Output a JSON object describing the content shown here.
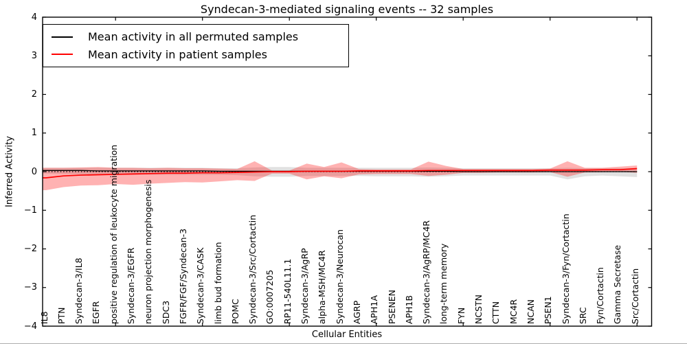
{
  "chart_data": {
    "type": "line",
    "title": "Syndecan-3-mediated signaling events -- 32 samples",
    "xlabel": "Cellular Entities",
    "ylabel": "Inferred Activity",
    "ylim": [
      -4,
      4
    ],
    "yticks": [
      4,
      3,
      2,
      1,
      0,
      -1,
      -2,
      -3,
      -4
    ],
    "x_major_tick_indices": [
      4,
      9,
      14,
      19,
      24,
      29,
      34
    ],
    "grid": false,
    "zero_line": {
      "value": 0,
      "style": "dotted",
      "color": "#000000"
    },
    "legend": {
      "position": "upper left",
      "entries": [
        {
          "label": "Mean activity in all permuted samples",
          "color": "#000000"
        },
        {
          "label": "Mean activity in patient samples",
          "color": "#ff0000"
        }
      ]
    },
    "categories": [
      "IL8",
      "PTN",
      "Syndecan-3/IL8",
      "EGFR",
      "positive regulation of leukocyte migration",
      "Syndecan-3/EGFR",
      "neuron projection morphogenesis",
      "SDC3",
      "FGFR/FGF/Syndecan-3",
      "Syndecan-3/CASK",
      "limb bud formation",
      "POMC",
      "Syndecan-3/Src/Cortactin",
      "GO:0007205",
      "RP11-540L11.1",
      "Syndecan-3/AgRP",
      "alpha-MSH/MC4R",
      "Syndecan-3/Neurocan",
      "AGRP",
      "APH1A",
      "PSENEN",
      "APH1B",
      "Syndecan-3/AgRP/MC4R",
      "long-term memory",
      "FYN",
      "NCSTN",
      "CTTN",
      "MC4R",
      "NCAN",
      "PSEN1",
      "Syndecan-3/Fyn/Cortactin",
      "SRC",
      "Fyn/Cortactin",
      "Gamma Secretase",
      "Src/Cortactin"
    ],
    "series": [
      {
        "name": "Mean activity in all permuted samples",
        "color": "#000000",
        "band_color": "rgba(120,120,120,0.22)",
        "values": [
          0.03,
          0.03,
          0.03,
          0.02,
          0.02,
          0.02,
          0.02,
          0.02,
          0.02,
          0.02,
          0.01,
          0.01,
          0.01,
          0.01,
          0.01,
          0.01,
          0.01,
          0.01,
          0.01,
          0.01,
          0.01,
          0.01,
          0.01,
          0.01,
          0,
          0,
          0,
          0,
          0,
          0,
          0,
          0,
          0,
          0,
          0
        ],
        "band_upper": [
          0.1,
          0.1,
          0.1,
          0.1,
          0.1,
          0.1,
          0.1,
          0.1,
          0.1,
          0.1,
          0.09,
          0.09,
          0.11,
          0.12,
          0.12,
          0.1,
          0.1,
          0.1,
          0.1,
          0.1,
          0.1,
          0.1,
          0.11,
          0.1,
          0.09,
          0.09,
          0.09,
          0.09,
          0.09,
          0.09,
          0.1,
          0.09,
          0.09,
          0.09,
          0.09
        ],
        "band_lower": [
          -0.05,
          -0.06,
          -0.07,
          -0.08,
          -0.08,
          -0.08,
          -0.08,
          -0.08,
          -0.08,
          -0.08,
          -0.08,
          -0.09,
          -0.12,
          -0.13,
          -0.13,
          -0.11,
          -0.11,
          -0.11,
          -0.11,
          -0.12,
          -0.12,
          -0.12,
          -0.13,
          -0.12,
          -0.1,
          -0.1,
          -0.1,
          -0.1,
          -0.1,
          -0.1,
          -0.2,
          -0.12,
          -0.1,
          -0.12,
          -0.14
        ]
      },
      {
        "name": "Mean activity in patient samples",
        "color": "#ff0000",
        "band_color": "rgba(255,0,0,0.30)",
        "values": [
          -0.16,
          -0.11,
          -0.09,
          -0.08,
          -0.07,
          -0.06,
          -0.05,
          -0.04,
          -0.04,
          -0.03,
          -0.03,
          -0.02,
          -0.01,
          0,
          0,
          0.01,
          0.01,
          0.01,
          0.02,
          0.02,
          0.02,
          0.02,
          0.03,
          0.03,
          0.03,
          0.03,
          0.03,
          0.03,
          0.03,
          0.04,
          0.04,
          0.04,
          0.05,
          0.05,
          0.08
        ],
        "band_upper": [
          0.1,
          0.1,
          0.11,
          0.12,
          0.1,
          0.1,
          0.09,
          0.1,
          0.09,
          0.09,
          0.08,
          0.07,
          0.27,
          0.03,
          0.03,
          0.21,
          0.12,
          0.24,
          0.07,
          0.06,
          0.06,
          0.06,
          0.26,
          0.15,
          0.07,
          0.07,
          0.07,
          0.07,
          0.07,
          0.08,
          0.27,
          0.1,
          0.1,
          0.13,
          0.16
        ],
        "band_lower": [
          -0.48,
          -0.4,
          -0.36,
          -0.35,
          -0.32,
          -0.34,
          -0.31,
          -0.29,
          -0.27,
          -0.28,
          -0.25,
          -0.22,
          -0.24,
          -0.05,
          -0.05,
          -0.2,
          -0.12,
          -0.17,
          -0.07,
          -0.06,
          -0.06,
          -0.06,
          -0.11,
          -0.08,
          -0.03,
          -0.03,
          -0.02,
          -0.02,
          -0.02,
          -0.01,
          -0.13,
          -0.02,
          -0.01,
          0.0,
          -0.03
        ]
      }
    ]
  }
}
